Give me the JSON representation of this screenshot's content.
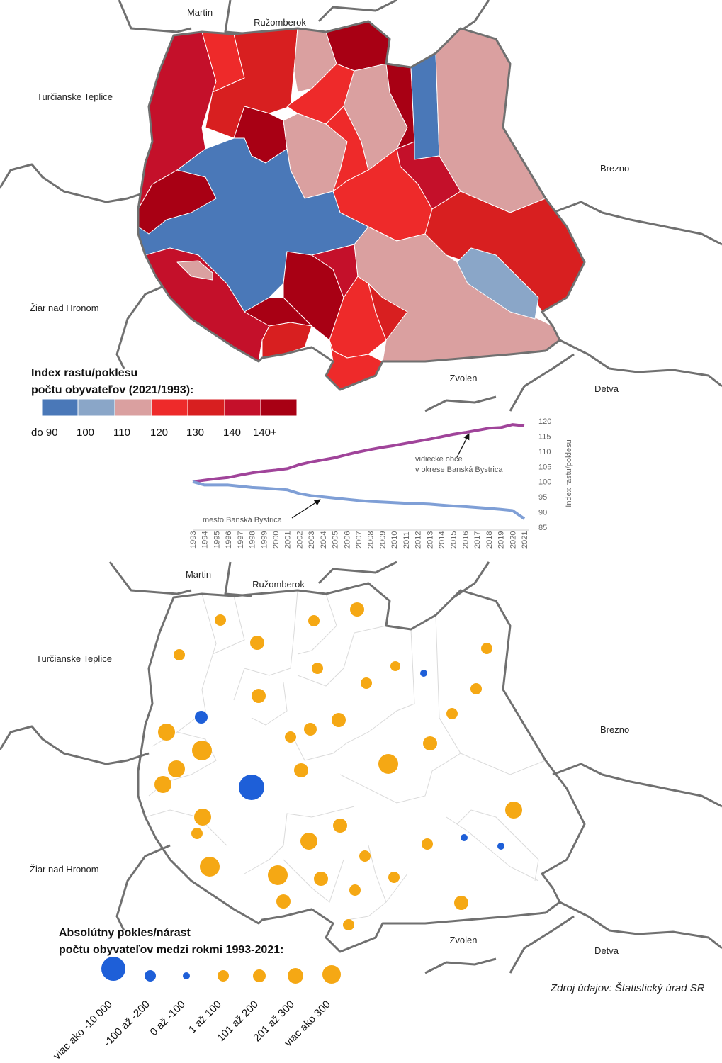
{
  "neighbors": {
    "martin": "Martin",
    "ruzomberok": "Ružomberok",
    "turcianske": "Turčianske Teplice",
    "brezno": "Brezno",
    "ziar": "Žiar nad Hronom",
    "zvolen": "Zvolen",
    "detva": "Detva"
  },
  "colors": {
    "c1": "#4a78b8",
    "c2": "#8aa6c8",
    "c3": "#daa0a0",
    "c4": "#ee2a2a",
    "c5": "#d81f20",
    "c6": "#c4102a",
    "c7": "#a80014",
    "growth": "#f5a814",
    "decline": "#1e5fd8",
    "border": "#707070"
  },
  "legend_index": {
    "title_line1": "Index rastu/poklesu",
    "title_line2": "počtu obyvateľov (2021/1993):",
    "labels": [
      "do 90",
      "100",
      "110",
      "120",
      "130",
      "140",
      "140+"
    ]
  },
  "chart_data": {
    "type": "line",
    "x": [
      1993,
      1994,
      1995,
      1996,
      1997,
      1998,
      1999,
      2000,
      2001,
      2002,
      2003,
      2004,
      2005,
      2006,
      2007,
      2008,
      2009,
      2010,
      2011,
      2012,
      2013,
      2014,
      2015,
      2016,
      2017,
      2018,
      2019,
      2020,
      2021
    ],
    "series": [
      {
        "name": "vidiecke obce v okrese Banská Bystrica",
        "values": [
          100,
          100.5,
          101,
          101.4,
          102.2,
          102.9,
          103.4,
          103.8,
          104.3,
          105.6,
          106.5,
          107.2,
          107.9,
          108.9,
          109.8,
          110.6,
          111.3,
          111.9,
          112.6,
          113.3,
          114.0,
          114.8,
          115.6,
          116.2,
          116.9,
          117.6,
          117.8,
          118.8,
          118.4
        ]
      },
      {
        "name": "mesto Banská Bystrica",
        "values": [
          100,
          98.9,
          98.9,
          98.9,
          98.5,
          98.1,
          97.9,
          97.6,
          97.3,
          96.1,
          95.4,
          95.0,
          94.6,
          94.2,
          93.8,
          93.5,
          93.3,
          93.1,
          92.9,
          92.8,
          92.6,
          92.3,
          92.0,
          91.8,
          91.5,
          91.2,
          90.9,
          90.5,
          87.8
        ]
      }
    ],
    "ylabel": "Index rastu/poklesu",
    "ylim": [
      85,
      120
    ],
    "yticks": [
      85,
      90,
      95,
      100,
      105,
      110,
      115,
      120
    ],
    "annotations": {
      "rural_line1": "vidiecke obce",
      "rural_line2": "v okrese Banská Bystrica",
      "city": "mesto Banská Bystrica"
    }
  },
  "legend_abs": {
    "title_line1": "Absolútny pokles/nárast",
    "title_line2": "počtu obyvateľov medzi rokmi 1993-2021:",
    "items": [
      {
        "label": "viac ako -10 000",
        "type": "decline"
      },
      {
        "label": "-100 až -200",
        "type": "decline"
      },
      {
        "label": "0 až -100",
        "type": "decline"
      },
      {
        "label": "1 až 100",
        "type": "growth"
      },
      {
        "label": "101 až 200",
        "type": "growth"
      },
      {
        "label": "201 až 300",
        "type": "growth"
      },
      {
        "label": "viac ako 300",
        "type": "growth"
      }
    ]
  },
  "source": "Zdroj údajov: Štatistický úrad SR"
}
